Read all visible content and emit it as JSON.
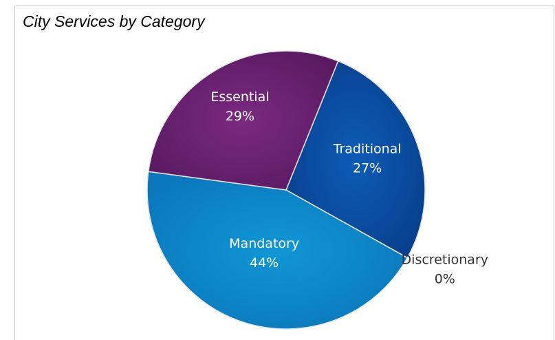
{
  "chart_data": {
    "type": "pie",
    "title": "City Services by Category",
    "slices": [
      {
        "name": "Traditional",
        "value": 27,
        "label": "27%",
        "color": "#0b51a6"
      },
      {
        "name": "Discretionary",
        "value": 0,
        "label": "0%",
        "color": "#0a6fb8"
      },
      {
        "name": "Mandatory",
        "value": 44,
        "label": "44%",
        "color": "#0e87c8"
      },
      {
        "name": "Essential",
        "value": 29,
        "label": "29%",
        "color": "#6b2270"
      }
    ],
    "start_angle_deg": -68,
    "direction": "clockwise",
    "legend": "none"
  }
}
